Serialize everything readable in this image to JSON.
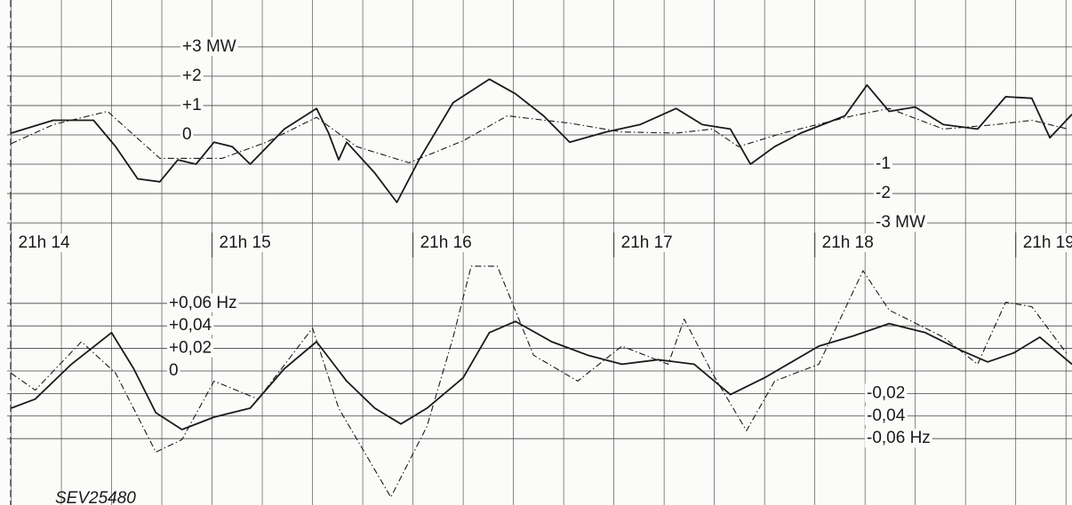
{
  "chart_data": [
    {
      "type": "line",
      "xlim": [
        13.98,
        19.28
      ],
      "ylim": [
        -3.3,
        4.6
      ],
      "xticks": [
        {
          "value": 14,
          "label": "21h 14"
        },
        {
          "value": 15,
          "label": "21h 15"
        },
        {
          "value": 16,
          "label": "21h 16"
        },
        {
          "value": 17,
          "label": "21h 17"
        },
        {
          "value": 18,
          "label": "21h 18"
        },
        {
          "value": 19,
          "label": "21h 19"
        }
      ],
      "yticks": [
        {
          "value": 3,
          "label": "+3 MW"
        },
        {
          "value": 2,
          "label": "+2"
        },
        {
          "value": 1,
          "label": "+1"
        },
        0,
        -1,
        -2,
        {
          "value": -3,
          "label": "-3 MW"
        }
      ],
      "grid": true,
      "series": [
        {
          "color": "#1a1a1a",
          "linestyle": "solid",
          "x": [
            14.0,
            14.21,
            14.41,
            14.52,
            14.63,
            14.74,
            14.83,
            14.92,
            15.01,
            15.1,
            15.19,
            15.36,
            15.52,
            15.58,
            15.63,
            15.67,
            15.81,
            15.92,
            16.03,
            16.2,
            16.38,
            16.51,
            16.65,
            16.78,
            16.96,
            17.13,
            17.31,
            17.44,
            17.58,
            17.68,
            17.8,
            17.93,
            18.15,
            18.26,
            18.37,
            18.5,
            18.64,
            18.81,
            18.95,
            19.08,
            19.17,
            19.28
          ],
          "values": [
            0.06,
            0.5,
            0.5,
            -0.4,
            -1.5,
            -1.6,
            -0.85,
            -1,
            -0.25,
            -0.4,
            -1,
            0.2,
            0.9,
            0.06,
            -0.85,
            -0.25,
            -1.3,
            -2.3,
            -0.85,
            1.1,
            1.9,
            1.4,
            0.65,
            -0.25,
            0.1,
            0.35,
            0.9,
            0.35,
            0.2,
            -1,
            -0.4,
            0.06,
            0.65,
            1.7,
            0.8,
            0.95,
            0.35,
            0.2,
            1.3,
            1.25,
            -0.1,
            0.7
          ]
        },
        {
          "color": "#1a1a1a",
          "linestyle": "dashdot",
          "x": [
            14.0,
            14.21,
            14.48,
            14.74,
            15.05,
            15.27,
            15.52,
            15.72,
            15.98,
            16.25,
            16.47,
            16.78,
            17.04,
            17.31,
            17.49,
            17.62,
            17.84,
            18.19,
            18.37,
            18.64,
            18.9,
            19.08,
            19.26
          ],
          "values": [
            -0.3,
            0.35,
            0.8,
            -0.8,
            -0.8,
            -0.25,
            0.6,
            -0.4,
            -0.95,
            -0.2,
            0.65,
            0.4,
            0.1,
            0.06,
            0.2,
            -0.4,
            0.06,
            0.65,
            0.9,
            0.2,
            0.35,
            0.5,
            0.2
          ]
        }
      ]
    },
    {
      "type": "line",
      "xlim": [
        13.98,
        19.28
      ],
      "ylim": [
        -0.115,
        0.1
      ],
      "yticks": [
        {
          "value": 0.06,
          "label": "+0,06 Hz"
        },
        {
          "value": 0.04,
          "label": "+0,04"
        },
        {
          "value": 0.02,
          "label": "+0,02"
        },
        0,
        {
          "value": -0.02,
          "label": "-0,02"
        },
        {
          "value": -0.04,
          "label": "-0,04"
        },
        {
          "value": -0.06,
          "label": "-0,06 Hz"
        }
      ],
      "grid": true,
      "annotation": "SEV25480",
      "series": [
        {
          "color": "#1a1a1a",
          "linestyle": "solid",
          "x": [
            14.0,
            14.12,
            14.3,
            14.5,
            14.61,
            14.72,
            14.85,
            15.01,
            15.19,
            15.36,
            15.52,
            15.67,
            15.81,
            15.94,
            16.07,
            16.25,
            16.38,
            16.51,
            16.69,
            16.87,
            17.04,
            17.22,
            17.4,
            17.58,
            17.75,
            18.02,
            18.19,
            18.37,
            18.55,
            18.73,
            18.86,
            18.99,
            19.12,
            19.28
          ],
          "values": [
            -0.033,
            -0.025,
            0.006,
            0.034,
            0.002,
            -0.037,
            -0.052,
            -0.041,
            -0.033,
            0.002,
            0.026,
            -0.009,
            -0.033,
            -0.047,
            -0.033,
            -0.006,
            0.034,
            0.044,
            0.026,
            0.014,
            0.006,
            0.01,
            0.006,
            -0.021,
            -0.006,
            0.022,
            0.031,
            0.042,
            0.034,
            0.018,
            0.008,
            0.016,
            0.03,
            0.006
          ]
        },
        {
          "color": "#1a1a1a",
          "linestyle": "dashdot",
          "x": [
            14.0,
            14.12,
            14.35,
            14.52,
            14.72,
            14.85,
            15.01,
            15.23,
            15.5,
            15.63,
            15.89,
            16.07,
            16.2,
            16.29,
            16.42,
            16.6,
            16.82,
            17.04,
            17.27,
            17.35,
            17.49,
            17.66,
            17.8,
            18.02,
            18.24,
            18.37,
            18.64,
            18.81,
            18.95,
            19.08,
            19.26
          ],
          "values": [
            -0.002,
            -0.017,
            0.026,
            -0.002,
            -0.072,
            -0.061,
            -0.009,
            -0.025,
            0.038,
            -0.033,
            -0.112,
            -0.049,
            0.03,
            0.093,
            0.093,
            0.014,
            -0.009,
            0.022,
            0.006,
            0.046,
            -0.002,
            -0.053,
            -0.009,
            0.006,
            0.089,
            0.054,
            0.03,
            0.006,
            0.061,
            0.057,
            0.014
          ]
        }
      ]
    }
  ]
}
